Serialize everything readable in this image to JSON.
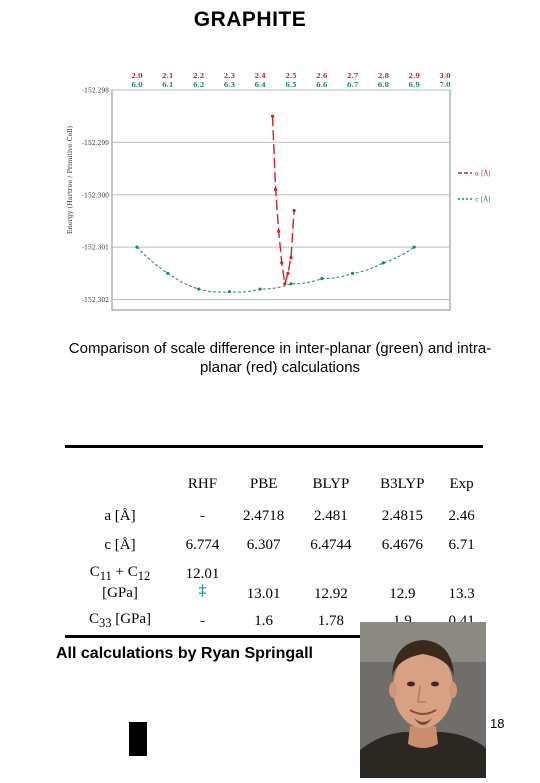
{
  "title": "GRAPHITE",
  "caption": "Comparison of scale difference in inter-planar (green) and intra-planar (red) calculations",
  "credit": "All calculations by Ryan Springall",
  "page_number": "18",
  "colors": {
    "red_series": "#d42020",
    "green_series": "#1a8a5a"
  },
  "chart_data": {
    "type": "scatter",
    "top_axis": {
      "red_ticks": [
        "2.0",
        "2.1",
        "2.2",
        "2.3",
        "2.4",
        "2.5",
        "2.6",
        "2.7",
        "2.8",
        "2.9",
        "3.0"
      ],
      "green_ticks": [
        "6.0",
        "6.1",
        "6.2",
        "6.3",
        "6.4",
        "6.5",
        "6.6",
        "6.7",
        "6.8",
        "6.9",
        "7.0"
      ]
    },
    "ylabel": "Energy (Hartree / Primitive Cell)",
    "y_ticks": [
      "-152.298",
      "-152.299",
      "-152.300",
      "-152.301",
      "-152.302"
    ],
    "ylim": [
      -152.3022,
      -152.298
    ],
    "grid": true,
    "legend_position": "right",
    "series": [
      {
        "name": "a [Å]",
        "color": "#d42020",
        "x_axis": "red",
        "x": [
          2.44,
          2.45,
          2.46,
          2.47,
          2.48,
          2.49,
          2.5,
          2.51
        ],
        "y": [
          -152.2985,
          -152.2999,
          -152.3007,
          -152.3013,
          -152.3017,
          -152.3015,
          -152.3012,
          -152.3003
        ]
      },
      {
        "name": "c [Å]",
        "color": "#1a8a5a",
        "x_axis": "green",
        "x": [
          6.0,
          6.1,
          6.2,
          6.3,
          6.4,
          6.5,
          6.6,
          6.7,
          6.8,
          6.9
        ],
        "y": [
          -152.301,
          -152.3015,
          -152.3018,
          -152.30185,
          -152.3018,
          -152.3017,
          -152.3016,
          -152.3015,
          -152.3013,
          -152.301
        ]
      }
    ]
  },
  "table": {
    "headers": [
      "",
      "RHF",
      "PBE",
      "BLYP",
      "B3LYP",
      "Exp"
    ],
    "rows": [
      {
        "label": "a [Å]",
        "cells": [
          "-",
          "2.4718",
          "2.481",
          "2.4815",
          "2.46"
        ]
      },
      {
        "label": "c [Å]",
        "cells": [
          "6.774",
          "6.307",
          "6.4744",
          "6.4676",
          "6.71"
        ]
      },
      {
        "label_main": "C",
        "label_sub1": "11",
        "label_mid": " + C",
        "label_sub2": "12",
        "label_unit": "[GPa]",
        "rhf_value": "12.01",
        "rhf_mark": "‡",
        "cells": [
          "13.01",
          "12.92",
          "12.9",
          "13.3"
        ]
      },
      {
        "label_main": "C",
        "label_sub1": "33",
        "label_unit": " [GPa]",
        "cells": [
          "-",
          "1.6",
          "1.78",
          "1.9",
          "0.41"
        ]
      }
    ]
  }
}
